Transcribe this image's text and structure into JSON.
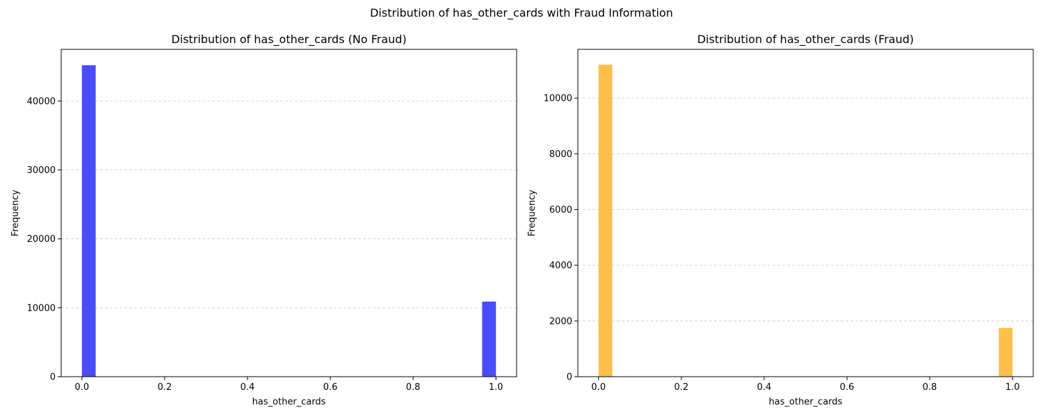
{
  "figure": {
    "suptitle": "Distribution of has_other_cards with Fraud Information"
  },
  "chart_data": [
    {
      "type": "bar",
      "title": "Distribution of has_other_cards (No Fraud)",
      "xlabel": "has_other_cards",
      "ylabel": "Frequency",
      "color": "#4b4bff",
      "bin_width": 0.0333,
      "bars": [
        {
          "x": 0.0,
          "value": 45200
        },
        {
          "x": 0.9667,
          "value": 10900
        }
      ],
      "xlim": [
        -0.05,
        1.05
      ],
      "ylim": [
        0,
        47500
      ],
      "xticks": [
        0.0,
        0.2,
        0.4,
        0.6,
        0.8,
        1.0
      ],
      "xtick_labels": [
        "0.0",
        "0.2",
        "0.4",
        "0.6",
        "0.8",
        "1.0"
      ],
      "yticks": [
        0,
        10000,
        20000,
        30000,
        40000
      ],
      "ytick_labels": [
        "0",
        "10000",
        "20000",
        "30000",
        "40000"
      ],
      "grid": "y-dashed"
    },
    {
      "type": "bar",
      "title": "Distribution of has_other_cards (Fraud)",
      "xlabel": "has_other_cards",
      "ylabel": "Frequency",
      "color": "#ffbf4b",
      "bin_width": 0.0333,
      "bars": [
        {
          "x": 0.0,
          "value": 11200
        },
        {
          "x": 0.9667,
          "value": 1750
        }
      ],
      "xlim": [
        -0.05,
        1.05
      ],
      "ylim": [
        0,
        11750
      ],
      "xticks": [
        0.0,
        0.2,
        0.4,
        0.6,
        0.8,
        1.0
      ],
      "xtick_labels": [
        "0.0",
        "0.2",
        "0.4",
        "0.6",
        "0.8",
        "1.0"
      ],
      "yticks": [
        0,
        2000,
        4000,
        6000,
        8000,
        10000
      ],
      "ytick_labels": [
        "0",
        "2000",
        "4000",
        "6000",
        "8000",
        "10000"
      ],
      "grid": "y-dashed"
    }
  ]
}
